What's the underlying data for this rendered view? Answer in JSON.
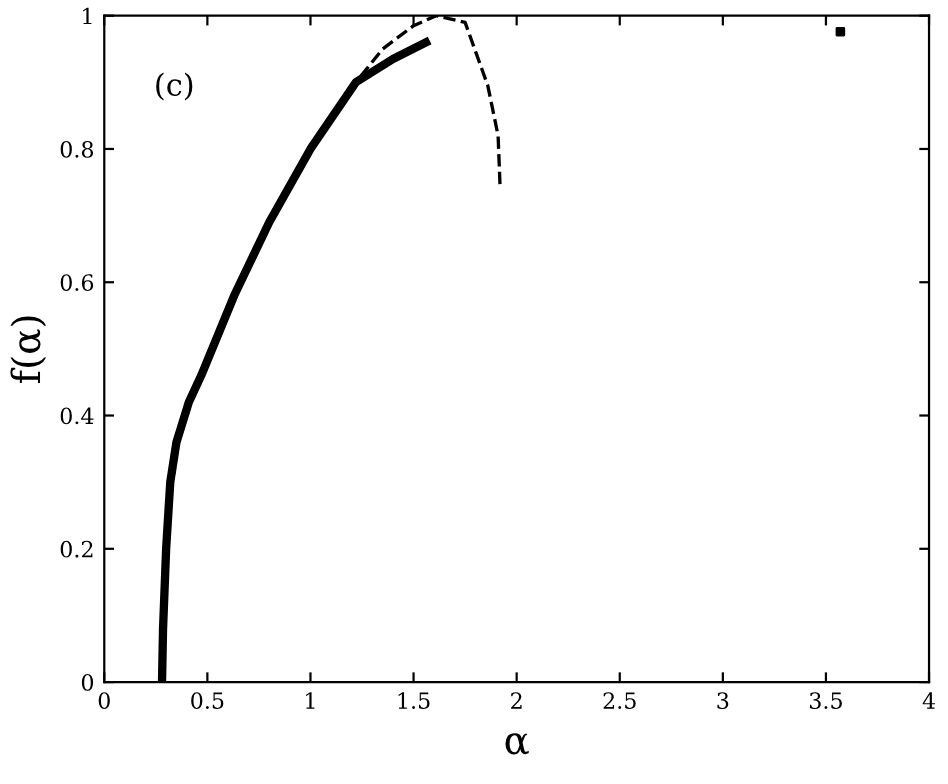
{
  "chart_data": {
    "type": "line",
    "xlabel": "α",
    "ylabel": "f(α)",
    "annotations": [
      "(c)"
    ],
    "xlim": [
      0,
      4
    ],
    "ylim": [
      0,
      1
    ],
    "xticks": [
      0,
      0.5,
      1,
      1.5,
      2,
      2.5,
      3,
      3.5,
      4
    ],
    "yticks": [
      0,
      0.2,
      0.4,
      0.6,
      0.8,
      1
    ],
    "grid": false,
    "legend": false,
    "series": [
      {
        "color": "#000000",
        "line_style": "dashed",
        "x": [
          1.0,
          1.22,
          1.35,
          1.5,
          1.61,
          1.75,
          1.86,
          1.91,
          1.92
        ],
        "values": [
          0.8,
          0.9,
          0.95,
          0.985,
          1.0,
          0.99,
          0.895,
          0.82,
          0.74
        ]
      },
      {
        "color": "#000000",
        "line_style": "solid",
        "x": [
          0.28,
          0.285,
          0.3,
          0.32,
          0.35,
          0.41,
          0.47,
          0.55,
          0.63,
          0.8,
          1.0,
          1.22,
          1.4,
          1.56
        ],
        "values": [
          0,
          0.08,
          0.2,
          0.3,
          0.36,
          0.42,
          0.46,
          0.52,
          0.58,
          0.69,
          0.8,
          0.9,
          0.935,
          0.96
        ]
      },
      {
        "type": "scatter",
        "color": "#000000",
        "marker": "square",
        "x": [
          3.57
        ],
        "values": [
          0.976
        ]
      }
    ]
  }
}
